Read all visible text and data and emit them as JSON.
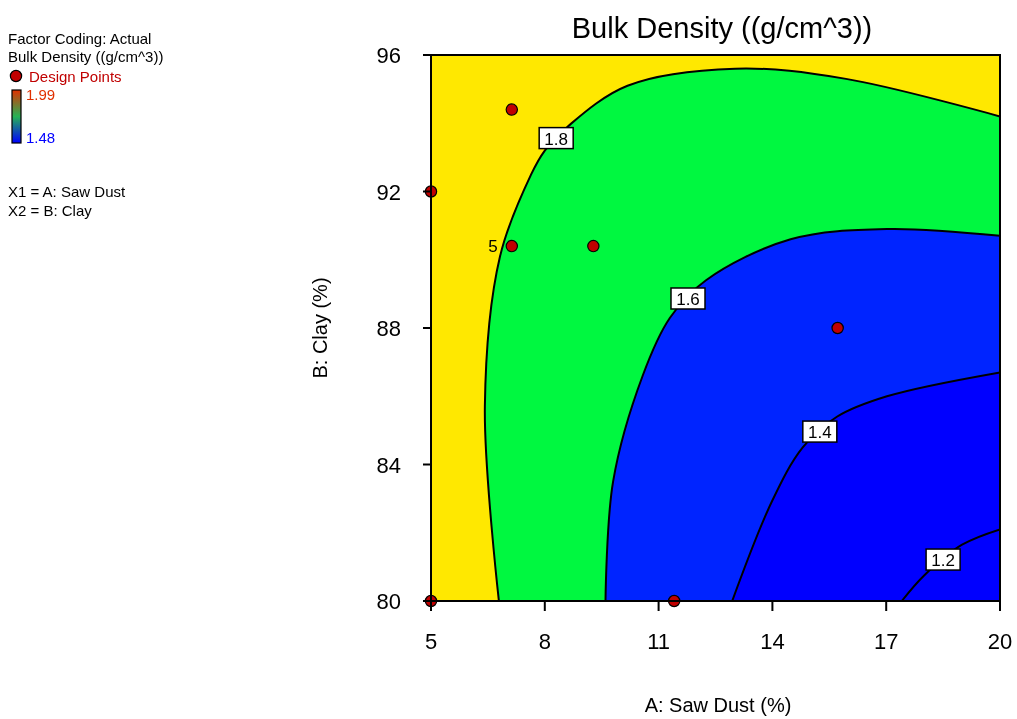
{
  "chart_data": {
    "type": "line",
    "title": "Bulk Density ((g/cm^3))",
    "xlabel": "A: Saw Dust (%)",
    "ylabel": "B: Clay (%)",
    "xlim": [
      5,
      20
    ],
    "xticks": [
      5,
      8,
      11,
      14,
      17,
      20
    ],
    "ylim": [
      80,
      96
    ],
    "yticks": [
      80,
      84,
      88,
      92,
      96
    ],
    "clim": [
      1.48,
      1.99
    ],
    "cticks": [
      1.48,
      1.99
    ],
    "legend": "top left",
    "grid": false,
    "line_style": "solid",
    "bands": [
      {
        "axis": "x",
        "from": 5,
        "to": 20,
        "color": "#ffe800"
      }
    ],
    "series": [
      {
        "name": "1.8",
        "color": "#000000",
        "x": [
          6.79,
          6.42,
          6.82,
          7.64,
          8.0,
          8.6,
          10.18,
          13.02,
          15.94,
          20
        ],
        "values": [
          80,
          85.7,
          90.1,
          92.5,
          93.2,
          93.9,
          95.1,
          95.6,
          95.3,
          94.2
        ]
      },
      {
        "name": "1.6",
        "color": "#000000",
        "x": [
          9.6,
          9.8,
          10.58,
          11.3,
          12.25,
          14.48,
          17.02,
          20
        ],
        "values": [
          80,
          83.5,
          86.6,
          88.3,
          89.4,
          90.6,
          90.9,
          90.7
        ]
      },
      {
        "name": "1.4",
        "color": "#000000",
        "x": [
          12.94,
          13.98,
          14.8,
          15.7,
          17.02,
          20
        ],
        "values": [
          80,
          82.9,
          84.5,
          85.4,
          86.0,
          86.7
        ]
      },
      {
        "name": "1.2",
        "color": "#000000",
        "x": [
          17.41,
          18.0,
          19.0,
          20
        ],
        "values": [
          80,
          80.75,
          81.65,
          82.1
        ]
      },
      {
        "name": "Design Points",
        "type": "scatter",
        "color": "#c00000",
        "marker": "circle",
        "x": [
          5,
          7.13,
          5,
          7.13,
          9.28,
          15.72,
          11.41
        ],
        "values": [
          80,
          94.4,
          92.0,
          90.4,
          90.4,
          88.0,
          80
        ]
      }
    ],
    "annotations": [
      "Factor Coding: Actual",
      "Bulk Density ((g/cm^3))",
      "X1 = A: Saw Dust",
      "X2 = B: Clay",
      {
        "text": "5",
        "x": 7.13,
        "y": 90.4
      }
    ]
  }
}
